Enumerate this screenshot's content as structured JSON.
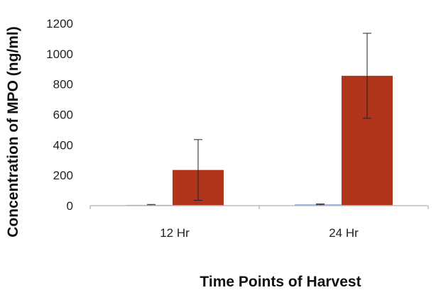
{
  "chart_data": {
    "type": "bar",
    "categories": [
      "12 Hr",
      "24 Hr"
    ],
    "series": [
      {
        "values": [
          5,
          8
        ],
        "error": [
          3,
          3
        ],
        "color": "#7f9fd0"
      },
      {
        "values": [
          235,
          855
        ],
        "error": [
          200,
          280
        ],
        "color": "#b0341c"
      }
    ],
    "xlabel": "Time Points of Harvest",
    "ylabel": "Concentration of MPO (ng/ml)",
    "ylim": [
      0,
      1200
    ],
    "yticks": [
      0,
      200,
      400,
      600,
      800,
      1000,
      1200
    ],
    "grid": false,
    "legend": "none"
  }
}
